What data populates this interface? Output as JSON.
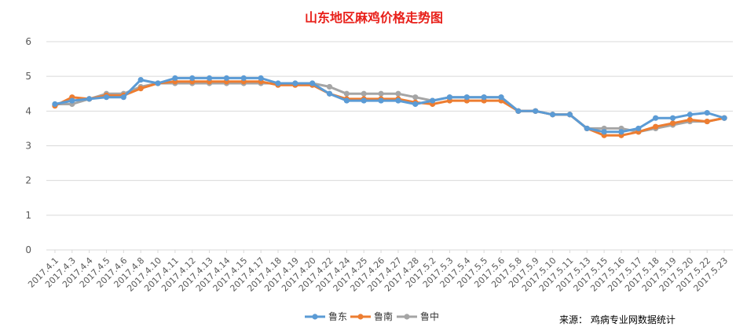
{
  "chart_data": {
    "type": "line",
    "title": "山东地区麻鸡价格走势图",
    "categories": [
      "2017.4.1",
      "2017.4.3",
      "2017.4.4",
      "2017.4.5",
      "2017.4.6",
      "2017.4.8",
      "2017.4.10",
      "2017.4.11",
      "2017.4.12",
      "2017.4.13",
      "2017.4.14",
      "2017.4.15",
      "2017.4.17",
      "2017.4.18",
      "2017.4.19",
      "2017.4.20",
      "2017.4.22",
      "2017.4.24",
      "2017.4.25",
      "2017.4.26",
      "2017.4.27",
      "2017.4.28",
      "2017.5.2",
      "2017.5.3",
      "2017.5.4",
      "2017.5.5",
      "2017.5.6",
      "2017.5.8",
      "2017.5.9",
      "2017.5.10",
      "2017.5.11",
      "2017.5.13",
      "2017.5.15",
      "2017.5.16",
      "2017.5.17",
      "2017.5.18",
      "2017.5.19",
      "2017.5.20",
      "2017.5.22",
      "2017.5.23"
    ],
    "series": [
      {
        "name": "鲁东",
        "color": "#5b9bd5",
        "values": [
          4.2,
          4.3,
          4.35,
          4.4,
          4.4,
          4.9,
          4.8,
          4.95,
          4.95,
          4.95,
          4.95,
          4.95,
          4.95,
          4.8,
          4.8,
          4.8,
          4.5,
          4.3,
          4.3,
          4.3,
          4.3,
          4.2,
          4.3,
          4.4,
          4.4,
          4.4,
          4.4,
          4.0,
          4.0,
          3.9,
          3.9,
          3.5,
          3.4,
          3.4,
          3.5,
          3.8,
          3.8,
          3.9,
          3.95,
          3.8
        ]
      },
      {
        "name": "鲁南",
        "color": "#ed7d31",
        "values": [
          4.15,
          4.4,
          4.35,
          4.45,
          4.45,
          4.65,
          4.8,
          4.85,
          4.85,
          4.85,
          4.85,
          4.85,
          4.85,
          4.75,
          4.75,
          4.75,
          4.5,
          4.35,
          4.35,
          4.35,
          4.35,
          4.25,
          4.2,
          4.3,
          4.3,
          4.3,
          4.3,
          4.0,
          4.0,
          3.9,
          3.9,
          3.5,
          3.3,
          3.3,
          3.4,
          3.55,
          3.65,
          3.75,
          3.7,
          3.8
        ]
      },
      {
        "name": "鲁中",
        "color": "#a5a5a5",
        "values": [
          4.2,
          4.2,
          4.35,
          4.5,
          4.5,
          4.7,
          4.8,
          4.8,
          4.8,
          4.8,
          4.8,
          4.8,
          4.8,
          4.8,
          4.8,
          4.8,
          4.7,
          4.5,
          4.5,
          4.5,
          4.5,
          4.4,
          4.3,
          4.4,
          4.4,
          4.4,
          4.4,
          4.0,
          4.0,
          3.9,
          3.9,
          3.5,
          3.5,
          3.5,
          3.4,
          3.5,
          3.6,
          3.7,
          3.7,
          3.8
        ]
      }
    ],
    "yticks": [
      0,
      1,
      2,
      3,
      4,
      5,
      6
    ],
    "ylim": [
      0,
      6
    ],
    "xlabel": "",
    "ylabel": "",
    "grid": true,
    "legend_position": "bottom"
  },
  "source_note": "来源：  鸡病专业网数据统计"
}
